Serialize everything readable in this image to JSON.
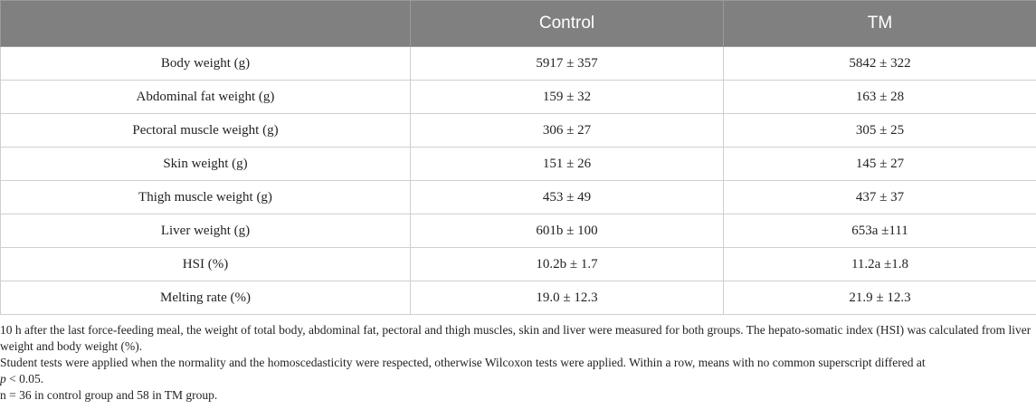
{
  "table": {
    "headers": [
      "",
      "Control",
      "TM"
    ],
    "rows": [
      {
        "label": "Body weight (g)",
        "control": "5917 ± 357",
        "tm": "5842 ± 322"
      },
      {
        "label": "Abdominal fat weight (g)",
        "control": "159 ± 32",
        "tm": "163 ± 28"
      },
      {
        "label": "Pectoral muscle weight (g)",
        "control": "306 ± 27",
        "tm": "305 ± 25"
      },
      {
        "label": "Skin weight (g)",
        "control": "151 ± 26",
        "tm": "145 ± 27"
      },
      {
        "label": "Thigh muscle weight (g)",
        "control": "453 ± 49",
        "tm": "437 ± 37"
      },
      {
        "label": "Liver weight (g)",
        "control": "601b ± 100",
        "tm": "653a ±111"
      },
      {
        "label": "HSI (%)",
        "control": "10.2b ± 1.7",
        "tm": "11.2a ±1.8"
      },
      {
        "label": "Melting rate (%)",
        "control": "19.0 ± 12.3",
        "tm": "21.9 ± 12.3"
      }
    ]
  },
  "notes": {
    "line1": "10 h after the last force-feeding meal, the weight of total body, abdominal fat, pectoral and thigh muscles, skin and liver were measured for both groups. The hepato-somatic index (HSI) was calculated from liver weight and body weight (%).",
    "line2_main": "Student tests were applied when the normality and the homoscedasticity were respected, otherwise Wilcoxon tests were applied. Within a row, means with no common superscript differed at",
    "line2_p": "p",
    "line2_tail": " < 0.05.",
    "line3": "n = 36 in control group and 58 in TM group."
  }
}
